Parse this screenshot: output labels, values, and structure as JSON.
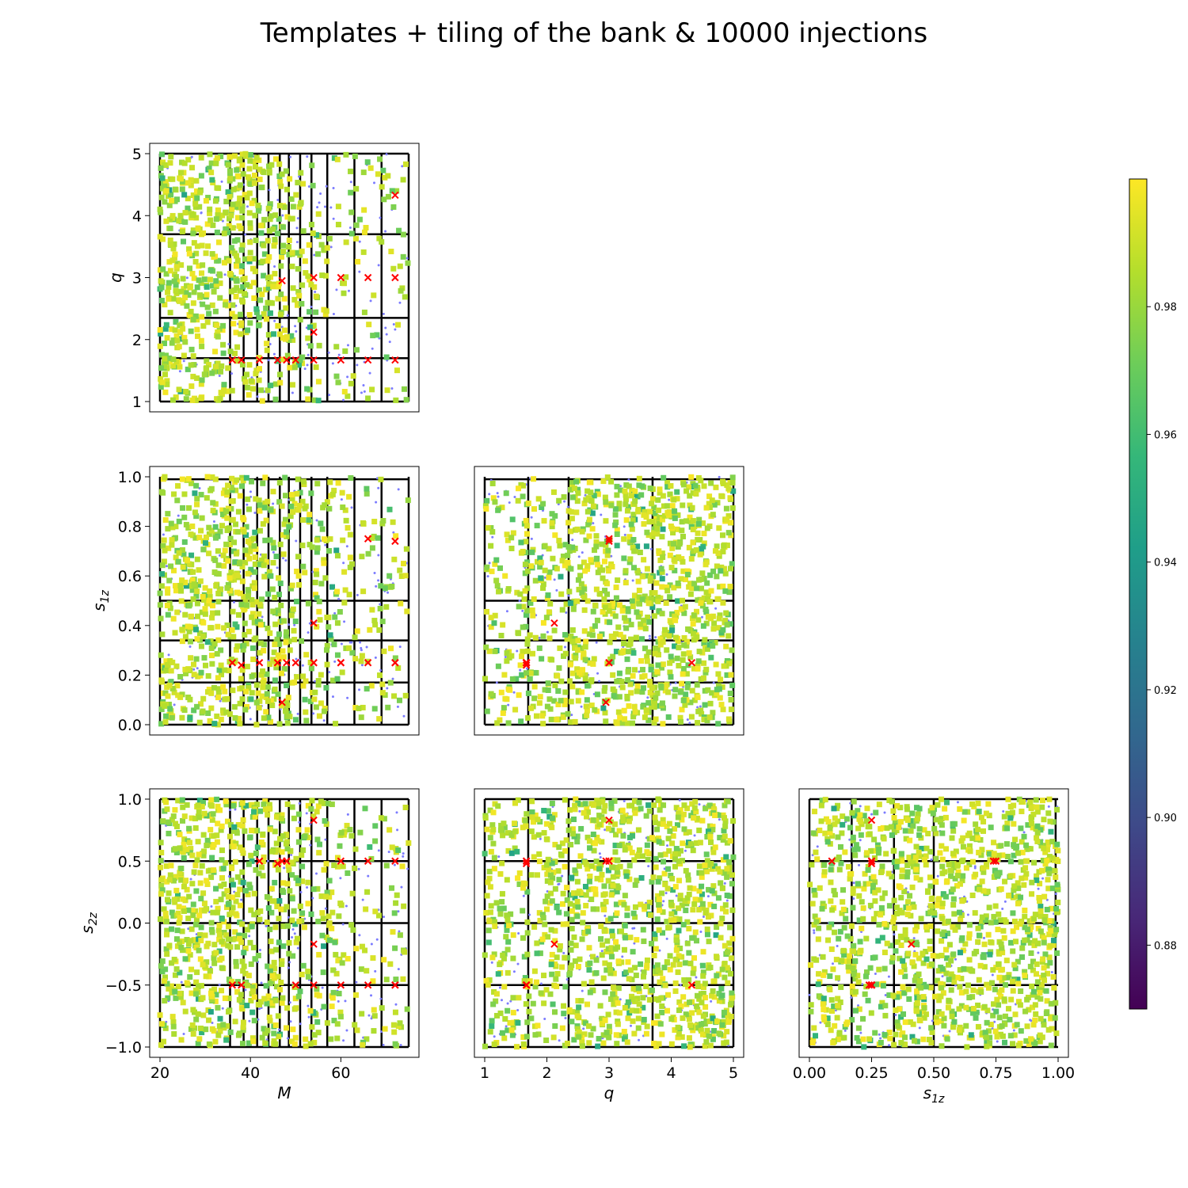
{
  "chart_data": {
    "type": "scatter",
    "title": "Templates + tiling of the bank & 10000 injections",
    "variables": [
      "M",
      "q",
      "s1z",
      "s2z"
    ],
    "axis_labels": {
      "M": {
        "base": "M",
        "sub": ""
      },
      "q": {
        "base": "q",
        "sub": ""
      },
      "s1z": {
        "base": "s",
        "sub": "1z"
      },
      "s2z": {
        "base": "s",
        "sub": "2z"
      }
    },
    "ranges": {
      "M": [
        20,
        75
      ],
      "q": [
        1,
        5
      ],
      "s1z": [
        0,
        1
      ],
      "s2z": [
        -1,
        1
      ]
    },
    "ticks": {
      "M": {
        "values": [
          20,
          40,
          60
        ],
        "labels": [
          "20",
          "40",
          "60"
        ]
      },
      "q": {
        "values": [
          1,
          2,
          3,
          4,
          5
        ],
        "labels": [
          "1",
          "2",
          "3",
          "4",
          "5"
        ]
      },
      "s1z": {
        "values": [
          0.0,
          0.25,
          0.5,
          0.75,
          1.0
        ],
        "labels": [
          "0.00",
          "0.25",
          "0.50",
          "0.75",
          "1.00"
        ]
      },
      "s1z_y": {
        "values": [
          0.0,
          0.2,
          0.4,
          0.6,
          0.8,
          1.0
        ],
        "labels": [
          "0.0",
          "0.2",
          "0.4",
          "0.6",
          "0.8",
          "1.0"
        ]
      },
      "s2z": {
        "values": [
          -1.0,
          -0.5,
          0.0,
          0.5,
          1.0
        ],
        "labels": [
          "−1.0",
          "−0.5",
          "0.0",
          "0.5",
          "1.0"
        ]
      }
    },
    "panels": [
      {
        "x": "M",
        "y": "q",
        "row": 0,
        "col": 0
      },
      {
        "x": "M",
        "y": "s1z",
        "row": 1,
        "col": 0
      },
      {
        "x": "q",
        "y": "s1z",
        "row": 1,
        "col": 1
      },
      {
        "x": "M",
        "y": "s2z",
        "row": 2,
        "col": 0
      },
      {
        "x": "q",
        "y": "s2z",
        "row": 2,
        "col": 1
      },
      {
        "x": "s1z",
        "y": "s2z",
        "row": 2,
        "col": 2
      }
    ],
    "tiling_boundaries": {
      "M": [
        20,
        35.5,
        38.5,
        41.5,
        44,
        46.5,
        48.5,
        51,
        53.5,
        57,
        63,
        69,
        75
      ],
      "q": [
        1,
        1.7,
        2.35,
        3.7,
        5
      ],
      "s1z": [
        0,
        0.17,
        0.34,
        0.5,
        0.99
      ],
      "s2z": [
        -1,
        -0.5,
        0.0,
        0.5,
        1.0
      ]
    },
    "templates": {
      "marker": "x",
      "color": "#ff0000",
      "points": [
        {
          "M": 36,
          "q": 1.67,
          "s1z": 0.25,
          "s2z": -0.5
        },
        {
          "M": 38,
          "q": 1.67,
          "s1z": 0.24,
          "s2z": -0.5
        },
        {
          "M": 42,
          "q": 1.67,
          "s1z": 0.25,
          "s2z": 0.5
        },
        {
          "M": 46,
          "q": 1.67,
          "s1z": 0.25,
          "s2z": 0.48
        },
        {
          "M": 48,
          "q": 1.67,
          "s1z": 0.25,
          "s2z": 0.5
        },
        {
          "M": 50,
          "q": 1.67,
          "s1z": 0.25,
          "s2z": -0.5
        },
        {
          "M": 54,
          "q": 1.67,
          "s1z": 0.25,
          "s2z": -0.5
        },
        {
          "M": 54,
          "q": 2.12,
          "s1z": 0.41,
          "s2z": -0.17
        },
        {
          "M": 47,
          "q": 2.95,
          "s1z": 0.09,
          "s2z": 0.5
        },
        {
          "M": 54,
          "q": 3.0,
          "s1z": 0.25,
          "s2z": 0.83
        },
        {
          "M": 60,
          "q": 1.67,
          "s1z": 0.25,
          "s2z": -0.5
        },
        {
          "M": 60,
          "q": 3.0,
          "s1z": 0.25,
          "s2z": 0.5
        },
        {
          "M": 66,
          "q": 1.67,
          "s1z": 0.25,
          "s2z": -0.5
        },
        {
          "M": 66,
          "q": 3.0,
          "s1z": 0.75,
          "s2z": 0.5
        },
        {
          "M": 72,
          "q": 1.67,
          "s1z": 0.25,
          "s2z": -0.5
        },
        {
          "M": 72,
          "q": 3.0,
          "s1z": 0.74,
          "s2z": 0.5
        },
        {
          "M": 72,
          "q": 4.33,
          "s1z": 0.25,
          "s2z": -0.5
        }
      ]
    },
    "injections": {
      "count": 10000,
      "marker": "s",
      "colormap": "viridis",
      "unmatched_color": "#7b7bff"
    },
    "colorbar": {
      "range": [
        0.87,
        1.0
      ],
      "ticks": [
        0.88,
        0.9,
        0.92,
        0.94,
        0.96,
        0.98
      ],
      "tick_labels": [
        "0.88",
        "0.90",
        "0.92",
        "0.94",
        "0.96",
        "0.98"
      ]
    }
  }
}
